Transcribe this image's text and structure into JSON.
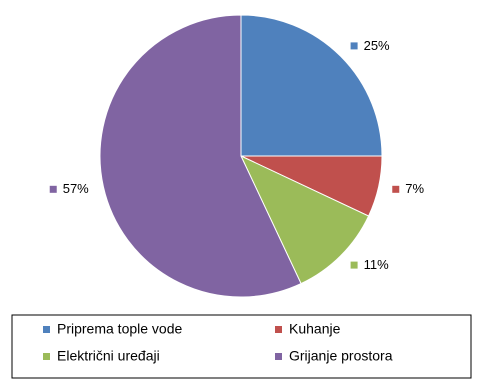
{
  "chart_data": {
    "type": "pie",
    "categories": [
      "Priprema tople vode",
      "Kuhanje",
      "Električni uređaji",
      "Grijanje prostora"
    ],
    "values": [
      25,
      7,
      11,
      57
    ],
    "value_labels": [
      "25%",
      "7%",
      "11%",
      "57%"
    ],
    "colors": [
      "#4f81bd",
      "#c0504d",
      "#9bbb59",
      "#8064a2"
    ]
  }
}
